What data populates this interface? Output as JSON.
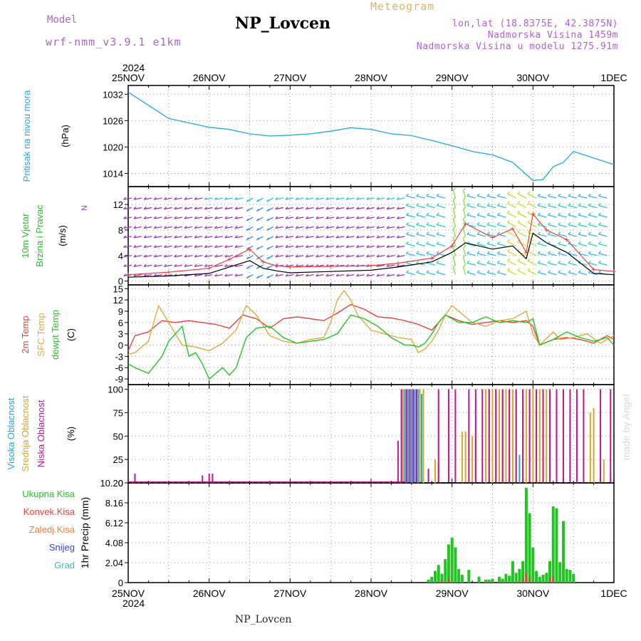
{
  "header": {
    "model_label": "Model",
    "model_name": "wrf-nmm_v3.9.1 e1km",
    "station": "NP_Lovcen",
    "meteogram_label": "Meteogram",
    "coords": "lon,lat (18.8375E, 42.3875N)",
    "altitude": "Nadmorska Visina 1459m",
    "model_altitude": "Nadmorska Visina u modelu 1275.91m"
  },
  "footer": {
    "station": "NP_Lovcen",
    "watermark": "made by Angel"
  },
  "colors": {
    "pressure": "#1fa9e1",
    "t2m": "#e8413c",
    "sfc": "#e0a93c",
    "dew": "#22c322",
    "high": "#1fa9e1",
    "mid": "#d9a62a",
    "low": "#c0168c",
    "snow": "#4040e0",
    "grad": "#30c0c0",
    "frozen": "#f08030",
    "wind": "#a033c0"
  },
  "chart_data": [
    {
      "type": "line",
      "panel": "pressure",
      "ylabel_side": "Pritisak na nivou mora",
      "unit": "(hPa)",
      "ylim": [
        1011,
        1034
      ],
      "yticks": [
        1014,
        1020,
        1026,
        1032
      ],
      "x_hours": [
        0,
        6,
        12,
        18,
        24,
        30,
        36,
        42,
        48,
        54,
        60,
        66,
        72,
        78,
        84,
        90,
        96,
        102,
        108,
        114,
        120,
        123,
        126,
        129,
        132,
        138,
        144
      ],
      "values": [
        1032.5,
        1029.5,
        1026.5,
        1025.5,
        1024.5,
        1024,
        1023,
        1022.5,
        1022.7,
        1023,
        1023.6,
        1024.4,
        1024,
        1023,
        1022.6,
        1021.5,
        1020.3,
        1019,
        1018.2,
        1016.5,
        1012.4,
        1012.6,
        1015.5,
        1016.5,
        1019,
        1017.5,
        1016
      ]
    },
    {
      "type": "line",
      "panel": "wind",
      "ylabel_side": [
        "10m Vjetar",
        "Brzina i Pravac"
      ],
      "unit": "(m/s)",
      "ylim": [
        -0.6,
        14.8
      ],
      "yticks": [
        0,
        4,
        8,
        12
      ],
      "compass": "N",
      "series": [
        {
          "name": "speed",
          "x_hours": [
            0,
            12,
            24,
            30,
            36,
            40,
            44,
            48,
            60,
            72,
            80,
            90,
            96,
            100,
            108,
            114,
            118,
            120,
            124,
            130,
            138,
            144
          ],
          "values": [
            0.6,
            0.8,
            1.2,
            2.2,
            3.2,
            2.0,
            1.6,
            1.3,
            1.5,
            1.7,
            2.2,
            3.0,
            4.5,
            6.0,
            5.0,
            5.5,
            3.5,
            7.5,
            6.0,
            4.5,
            1.2,
            1.0
          ]
        },
        {
          "name": "gust",
          "x_hours": [
            0,
            12,
            24,
            30,
            36,
            40,
            44,
            48,
            60,
            72,
            80,
            90,
            96,
            100,
            108,
            114,
            118,
            120,
            124,
            130,
            138,
            144
          ],
          "values": [
            1.0,
            1.4,
            2.0,
            3.4,
            5.0,
            3.0,
            2.4,
            2.2,
            2.3,
            2.4,
            2.8,
            3.6,
            5.5,
            9.0,
            6.8,
            8.2,
            4.5,
            10.5,
            8.0,
            6.5,
            1.8,
            1.5
          ]
        }
      ]
    },
    {
      "type": "line",
      "panel": "temperature",
      "ylabel_side": [
        "2m Temp",
        "SFC Temp",
        "dewpt Temp"
      ],
      "unit": "(C)",
      "ylim": [
        -10.5,
        16
      ],
      "yticks": [
        -9,
        -6,
        -3,
        0,
        3,
        6,
        9,
        12,
        15
      ],
      "series": [
        {
          "name": "2m Temp",
          "x_hours": [
            0,
            2,
            6,
            10,
            14,
            18,
            22,
            26,
            30,
            34,
            38,
            42,
            46,
            50,
            54,
            58,
            62,
            66,
            70,
            74,
            78,
            82,
            86,
            90,
            94,
            98,
            102,
            106,
            110,
            114,
            118,
            120,
            122,
            126,
            130,
            134,
            138,
            142,
            144
          ],
          "values": [
            -1.5,
            2.5,
            3.5,
            6.5,
            6,
            6.5,
            6,
            5.5,
            4.5,
            8,
            7,
            4.5,
            7,
            7.5,
            7,
            6.5,
            8.5,
            10.8,
            9.5,
            7.5,
            7.2,
            6.5,
            5.5,
            4,
            8,
            6.5,
            5.5,
            6,
            6.5,
            6,
            6.5,
            5,
            0,
            1.5,
            2,
            1.5,
            0.5,
            2.5,
            1.5
          ]
        },
        {
          "name": "SFC Temp",
          "x_hours": [
            0,
            2,
            6,
            9,
            12,
            14,
            16,
            20,
            24,
            28,
            32,
            35,
            38,
            42,
            46,
            50,
            54,
            58,
            60,
            62,
            64,
            66,
            68,
            70,
            72,
            76,
            80,
            84,
            86,
            88,
            90,
            92,
            94,
            96,
            98,
            102,
            106,
            110,
            114,
            118,
            120,
            122,
            126,
            128,
            132,
            136,
            140,
            144
          ],
          "values": [
            -2.5,
            -2,
            1,
            10.5,
            6,
            3,
            0,
            -0.5,
            -1.5,
            0.5,
            4,
            10.5,
            8,
            2.5,
            1,
            0.5,
            1.5,
            2,
            6,
            12,
            14.5,
            12,
            8,
            6,
            4,
            3,
            2,
            1.5,
            -2,
            -1,
            1,
            4,
            8,
            10.5,
            9,
            6,
            5,
            6.5,
            7,
            9,
            3,
            0,
            3.5,
            1.5,
            2,
            3,
            0.5,
            2.5
          ]
        },
        {
          "name": "dewpt Temp",
          "x_hours": [
            0,
            2,
            6,
            10,
            12,
            16,
            18,
            20,
            22,
            24,
            28,
            30,
            32,
            35,
            38,
            42,
            46,
            50,
            54,
            58,
            62,
            66,
            70,
            74,
            78,
            82,
            84,
            86,
            88,
            90,
            92,
            94,
            96,
            98,
            102,
            106,
            110,
            114,
            118,
            120,
            122,
            126,
            130,
            134,
            138,
            142,
            144
          ],
          "values": [
            -5,
            -6,
            -7.5,
            -3,
            1,
            5,
            -3,
            -2,
            -5,
            -9,
            -6,
            -8,
            -6,
            2,
            4.5,
            5,
            2,
            0.5,
            1,
            1.5,
            3,
            8,
            7,
            5,
            2,
            0,
            0,
            -0.5,
            0.5,
            3,
            6,
            8,
            7,
            6,
            6,
            7.5,
            6,
            6.5,
            6,
            7,
            0,
            1.5,
            3.5,
            2,
            1,
            2,
            0
          ]
        }
      ]
    },
    {
      "type": "bar",
      "panel": "cloud",
      "ylabel_side": [
        "Visoka Oblacnost",
        "Srednja Oblacnost",
        "Niska Oblacnost"
      ],
      "unit": "(%)",
      "ylim": [
        0,
        105
      ],
      "yticks": [
        0,
        25,
        50,
        75,
        100
      ],
      "series": [
        {
          "name": "Visoka Oblacnost",
          "x_hours": [
            81,
            82,
            83,
            84,
            85,
            86,
            87,
            113,
            116,
            121,
            143
          ],
          "values": [
            100,
            100,
            100,
            100,
            100,
            100,
            95,
            30,
            30,
            30,
            10
          ]
        },
        {
          "name": "Srednja Oblacnost",
          "x_hours": [
            81.5,
            82.5,
            83.5,
            84.5,
            85.5,
            86.5,
            87.5,
            91,
            92,
            99,
            100,
            102,
            103,
            106,
            107,
            108,
            109,
            110,
            111,
            112,
            113,
            114,
            115,
            117,
            118,
            119,
            120,
            121,
            122,
            123,
            124,
            131,
            137,
            138,
            141
          ],
          "values": [
            100,
            100,
            100,
            100,
            100,
            100,
            100,
            25,
            20,
            55,
            55,
            50,
            50,
            100,
            100,
            100,
            100,
            100,
            100,
            100,
            100,
            100,
            100,
            100,
            100,
            100,
            100,
            100,
            100,
            100,
            100,
            75,
            75,
            80,
            25
          ]
        },
        {
          "name": "Niska Oblacnost",
          "x_hours": [
            2,
            22,
            24,
            25,
            80,
            81,
            82.5,
            83.5,
            84.5,
            85.5,
            89,
            92,
            95,
            97,
            101,
            103,
            105,
            107,
            109,
            111,
            113,
            115,
            117,
            119,
            121,
            123,
            125,
            127,
            129,
            131,
            133,
            135,
            140,
            143
          ],
          "values": [
            10,
            8,
            10,
            10,
            45,
            100,
            100,
            100,
            100,
            100,
            15,
            100,
            100,
            100,
            100,
            100,
            100,
            100,
            100,
            100,
            100,
            100,
            100,
            100,
            100,
            100,
            100,
            100,
            100,
            100,
            100,
            100,
            100,
            100
          ]
        }
      ]
    },
    {
      "type": "bar",
      "panel": "precip",
      "ylabel": "1hr Precip (mm)",
      "ylabel_side": [
        "Ukupna Kisa",
        "Konvek.Kisa",
        "Zaledj.Kisa",
        "Snijeg",
        "Grad"
      ],
      "ylim": [
        0,
        10.2
      ],
      "yticks": [
        0,
        2.04,
        4.08,
        6.12,
        8.16,
        10.2
      ],
      "series": [
        {
          "name": "Ukupna Kisa",
          "x_hours": [
            89,
            90,
            91,
            92,
            93,
            94,
            95,
            96,
            97,
            98,
            99,
            101,
            104,
            106,
            107,
            108,
            110,
            111,
            112,
            113,
            114,
            115,
            116,
            117,
            118,
            119,
            120,
            121,
            122,
            123,
            124,
            125,
            126,
            127,
            128,
            129,
            130,
            131,
            132
          ],
          "values": [
            0.3,
            0.6,
            1.2,
            1.8,
            0.9,
            2.4,
            3.9,
            4.6,
            3.6,
            1.4,
            0.8,
            1.3,
            0.6,
            0.3,
            0.3,
            0.4,
            0.6,
            0.4,
            0.9,
            0.7,
            2.2,
            1.0,
            1.4,
            2.2,
            9.7,
            7.1,
            3.6,
            1.2,
            0.6,
            0.8,
            1.0,
            2.2,
            7.8,
            7.6,
            2.1,
            6.3,
            1.4,
            1.3,
            0.9
          ]
        },
        {
          "name": "Konvek.Kisa",
          "x_hours": [
            93,
            95,
            117,
            118,
            119,
            125,
            126
          ],
          "values": [
            0.3,
            0.4,
            0.5,
            1.0,
            0.6,
            0.4,
            0.7
          ]
        }
      ]
    }
  ],
  "xaxis": {
    "start_year": "2024",
    "dates": [
      "25NOV",
      "26NOV",
      "27NOV",
      "28NOV",
      "29NOV",
      "30NOV",
      "1DEC"
    ]
  }
}
